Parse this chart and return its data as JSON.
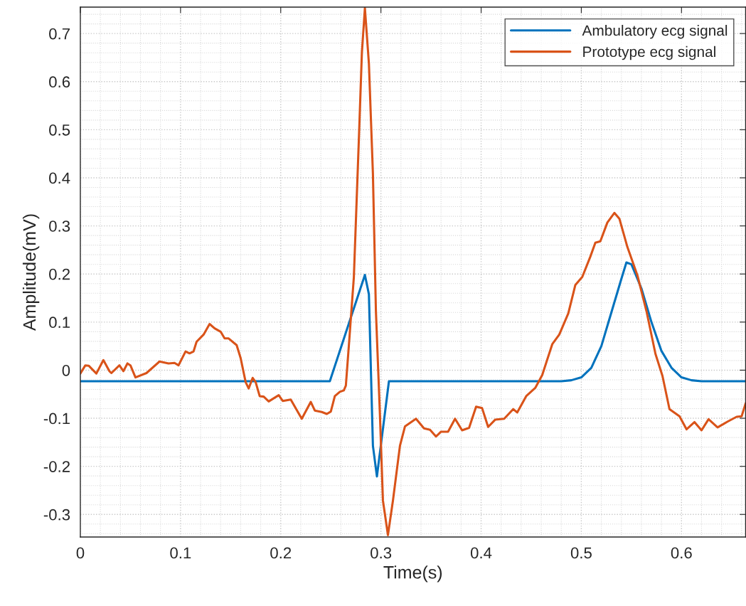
{
  "chart_data": {
    "type": "line",
    "xlabel": "Time(s)",
    "ylabel": "Amplitude(mV)",
    "xlim": [
      0,
      0.664
    ],
    "ylim": [
      -0.347,
      0.755
    ],
    "xticks": [
      0,
      0.1,
      0.2,
      0.3,
      0.4,
      0.5,
      0.6
    ],
    "yticks": [
      -0.3,
      -0.2,
      -0.1,
      0,
      0.1,
      0.2,
      0.3,
      0.4,
      0.5,
      0.6,
      0.7
    ],
    "grid": true,
    "legend": "top right",
    "marker": "none",
    "line_style": "solid",
    "series": [
      {
        "name": "Ambulatory ecg signal",
        "color": "#0072bd",
        "x": [
          0,
          0.249,
          0.284,
          0.288,
          0.292,
          0.296,
          0.308,
          0.48,
          0.49,
          0.5,
          0.51,
          0.52,
          0.53,
          0.54,
          0.545,
          0.55,
          0.56,
          0.57,
          0.58,
          0.59,
          0.6,
          0.61,
          0.62,
          0.664
        ],
        "values": [
          -0.023,
          -0.023,
          0.198,
          0.158,
          -0.157,
          -0.221,
          -0.023,
          -0.023,
          -0.021,
          -0.015,
          0.005,
          0.05,
          0.12,
          0.19,
          0.224,
          0.22,
          0.17,
          0.1,
          0.04,
          0.005,
          -0.015,
          -0.021,
          -0.023,
          -0.023
        ]
      },
      {
        "name": "Prototype ecg signal",
        "color": "#d95319",
        "x": [
          0,
          0.005,
          0.0085,
          0.016,
          0.023,
          0.029,
          0.031,
          0.039,
          0.043,
          0.047,
          0.05,
          0.055,
          0.066,
          0.079,
          0.088,
          0.094,
          0.098,
          0.105,
          0.109,
          0.113,
          0.116,
          0.123,
          0.129,
          0.134,
          0.14,
          0.144,
          0.148,
          0.156,
          0.16,
          0.165,
          0.168,
          0.172,
          0.175,
          0.179,
          0.183,
          0.188,
          0.198,
          0.202,
          0.21,
          0.221,
          0.23,
          0.234,
          0.241,
          0.246,
          0.25,
          0.254,
          0.259,
          0.263,
          0.265,
          0.268,
          0.273,
          0.278,
          0.281,
          0.284,
          0.288,
          0.292,
          0.295,
          0.299,
          0.302,
          0.307,
          0.312,
          0.319,
          0.324,
          0.335,
          0.343,
          0.349,
          0.355,
          0.36,
          0.367,
          0.374,
          0.381,
          0.388,
          0.395,
          0.401,
          0.407,
          0.414,
          0.423,
          0.432,
          0.436,
          0.445,
          0.454,
          0.461,
          0.471,
          0.478,
          0.487,
          0.494,
          0.501,
          0.509,
          0.514,
          0.519,
          0.526,
          0.533,
          0.538,
          0.546,
          0.556,
          0.565,
          0.574,
          0.581,
          0.588,
          0.598,
          0.605,
          0.613,
          0.62,
          0.627,
          0.636,
          0.646,
          0.655,
          0.66,
          0.664
        ],
        "values": [
          -0.007,
          0.01,
          0.009,
          -0.007,
          0.021,
          -0.002,
          -0.006,
          0.01,
          -0.002,
          0.014,
          0.01,
          -0.015,
          -0.006,
          0.018,
          0.014,
          0.015,
          0.01,
          0.039,
          0.035,
          0.039,
          0.059,
          0.074,
          0.096,
          0.087,
          0.08,
          0.066,
          0.066,
          0.052,
          0.025,
          -0.025,
          -0.038,
          -0.016,
          -0.025,
          -0.054,
          -0.055,
          -0.065,
          -0.052,
          -0.064,
          -0.061,
          -0.101,
          -0.066,
          -0.084,
          -0.087,
          -0.091,
          -0.086,
          -0.054,
          -0.045,
          -0.042,
          -0.032,
          0.051,
          0.194,
          0.481,
          0.66,
          0.753,
          0.638,
          0.409,
          0.123,
          -0.092,
          -0.271,
          -0.343,
          -0.271,
          -0.157,
          -0.117,
          -0.101,
          -0.121,
          -0.124,
          -0.138,
          -0.128,
          -0.128,
          -0.101,
          -0.125,
          -0.12,
          -0.076,
          -0.079,
          -0.118,
          -0.103,
          -0.101,
          -0.081,
          -0.088,
          -0.054,
          -0.037,
          -0.01,
          0.054,
          0.074,
          0.118,
          0.177,
          0.194,
          0.236,
          0.265,
          0.268,
          0.307,
          0.327,
          0.315,
          0.256,
          0.197,
          0.123,
          0.034,
          -0.012,
          -0.081,
          -0.096,
          -0.123,
          -0.108,
          -0.125,
          -0.102,
          -0.119,
          -0.107,
          -0.097,
          -0.096,
          -0.069
        ]
      }
    ]
  }
}
